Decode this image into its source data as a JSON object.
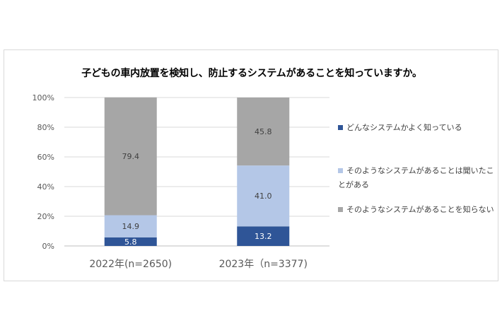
{
  "chart_data": {
    "type": "bar",
    "stacked": true,
    "title": "子どもの車内放置を検知し、防止するシステムがあることを知っていますか。",
    "categories": [
      "2022年(n=2650)",
      "2023年（n=3377)"
    ],
    "series": [
      {
        "name": "どんなシステムかよく知っている",
        "values": [
          5.8,
          13.2
        ],
        "color": "#2f5597",
        "label_color": "#ffffff"
      },
      {
        "name": "そのようなシステムがあることは聞いたことがある",
        "values": [
          14.9,
          41.0
        ],
        "color": "#b4c7e7",
        "label_color": "#404040"
      },
      {
        "name": "そのようなシステムがあることを知らない",
        "values": [
          79.4,
          45.8
        ],
        "color": "#a6a6a6",
        "label_color": "#404040"
      }
    ],
    "data_labels": [
      [
        "5.8",
        "13.2"
      ],
      [
        "14.9",
        "41.0"
      ],
      [
        "79.4",
        "45.8"
      ]
    ],
    "y_ticks": [
      "0%",
      "20%",
      "40%",
      "60%",
      "80%",
      "100%"
    ],
    "ylim": [
      0,
      100
    ],
    "grid": true,
    "legend_position": "right"
  },
  "legend": {
    "items": [
      {
        "lines": [
          "どんなシステムかよく知っている"
        ],
        "color": "#2f5597"
      },
      {
        "lines": [
          "そのようなシステムがあることは聞いたこ",
          "とがある"
        ],
        "color": "#b4c7e7"
      },
      {
        "lines": [
          "そのようなシステムがあることを知らない"
        ],
        "color": "#a6a6a6"
      }
    ]
  }
}
